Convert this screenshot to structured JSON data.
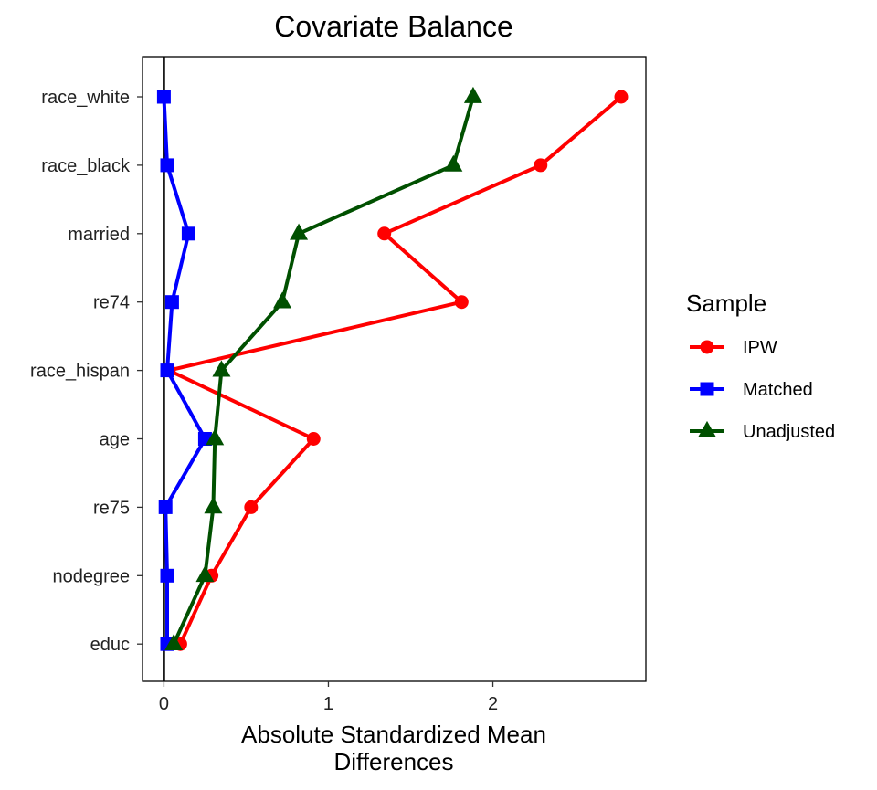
{
  "chart_data": {
    "type": "line",
    "title": "Covariate Balance",
    "xlabel_lines": [
      "Absolute Standardized Mean",
      "Differences"
    ],
    "ylabel": "",
    "xlim": [
      -0.13,
      2.93
    ],
    "x_ticks": [
      0,
      1,
      2
    ],
    "x_tick_labels": [
      "0",
      "1",
      "2"
    ],
    "reference_line_x": 0,
    "grid": false,
    "categories": [
      "race_white",
      "race_black",
      "married",
      "re74",
      "race_hispan",
      "age",
      "re75",
      "nodegree",
      "educ"
    ],
    "legend": {
      "title": "Sample",
      "placement": "right"
    },
    "series": [
      {
        "name": "IPW",
        "color": "#FF0000",
        "marker": "circle",
        "values": [
          2.78,
          2.29,
          1.34,
          1.81,
          0.03,
          0.91,
          0.53,
          0.29,
          0.1
        ]
      },
      {
        "name": "Matched",
        "color": "#0000FF",
        "marker": "square",
        "values": [
          0.0,
          0.02,
          0.15,
          0.05,
          0.02,
          0.25,
          0.01,
          0.02,
          0.02
        ]
      },
      {
        "name": "Unadjusted",
        "color": "#005000",
        "marker": "triangle",
        "values": [
          1.88,
          1.76,
          0.82,
          0.72,
          0.35,
          0.31,
          0.3,
          0.25,
          0.06
        ]
      }
    ]
  }
}
